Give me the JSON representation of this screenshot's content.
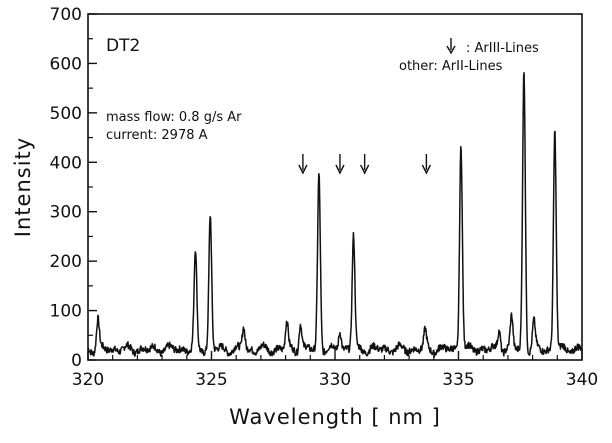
{
  "chart_data": {
    "type": "line",
    "title": "",
    "xlabel": "Wavelength [ nm ]",
    "ylabel": "Intensity",
    "xlim": [
      320,
      340
    ],
    "ylim": [
      0,
      700
    ],
    "x_ticks": [
      "320",
      "325",
      "330",
      "335",
      "340"
    ],
    "y_ticks": [
      "0",
      "100",
      "200",
      "300",
      "400",
      "500",
      "600",
      "700"
    ],
    "grid": false,
    "legend": "none",
    "series": [
      {
        "peaks": [
          {
            "x": 320.4,
            "y": 85
          },
          {
            "x": 324.35,
            "y": 220
          },
          {
            "x": 324.95,
            "y": 295
          },
          {
            "x": 326.3,
            "y": 70
          },
          {
            "x": 328.05,
            "y": 80
          },
          {
            "x": 328.6,
            "y": 80
          },
          {
            "x": 329.35,
            "y": 380
          },
          {
            "x": 330.2,
            "y": 65
          },
          {
            "x": 330.75,
            "y": 255
          },
          {
            "x": 333.65,
            "y": 60
          },
          {
            "x": 335.1,
            "y": 445
          },
          {
            "x": 336.65,
            "y": 65
          },
          {
            "x": 337.15,
            "y": 90
          },
          {
            "x": 337.65,
            "y": 590
          },
          {
            "x": 338.05,
            "y": 80
          },
          {
            "x": 338.9,
            "y": 470
          }
        ]
      }
    ],
    "arrow_markers_x": [
      328.7,
      330.2,
      331.2,
      333.7
    ],
    "annotations": {
      "label_id": "DT2",
      "mass_flow": "mass flow: 0.8 g/s Ar",
      "current": "current: 2978 A",
      "legend_arrow_text": ": ArIII-Lines",
      "legend_other_text": "other: ArII-Lines"
    }
  }
}
